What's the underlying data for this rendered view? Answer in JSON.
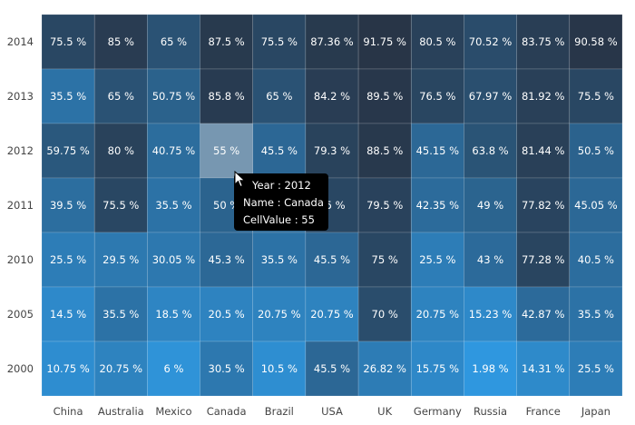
{
  "chart_data": {
    "type": "heatmap",
    "x_categories": [
      "China",
      "Australia",
      "Mexico",
      "Canada",
      "Brazil",
      "USA",
      "UK",
      "Germany",
      "Russia",
      "France",
      "Japan"
    ],
    "y_categories": [
      "2014",
      "2013",
      "2012",
      "2011",
      "2010",
      "2005",
      "2000"
    ],
    "values": [
      [
        75.5,
        85,
        65,
        87.5,
        75.5,
        87.36,
        91.75,
        80.5,
        70.52,
        83.75,
        90.58
      ],
      [
        35.5,
        65,
        50.75,
        85.8,
        65,
        84.2,
        89.5,
        76.5,
        67.97,
        81.92,
        75.5
      ],
      [
        59.75,
        80,
        40.75,
        55,
        45.5,
        79.3,
        88.5,
        45.15,
        63.8,
        81.44,
        50.5
      ],
      [
        39.5,
        75.5,
        35.5,
        50,
        45.5,
        75,
        79.5,
        42.35,
        49,
        77.82,
        45.05
      ],
      [
        25.5,
        29.5,
        30.05,
        45.3,
        35.5,
        45.5,
        75,
        25.5,
        43,
        77.28,
        40.5
      ],
      [
        14.5,
        35.5,
        18.5,
        20.5,
        20.75,
        20.75,
        70,
        20.75,
        15.23,
        42.87,
        35.5
      ],
      [
        10.75,
        20.75,
        6,
        30.5,
        10.5,
        45.5,
        26.82,
        15.75,
        1.98,
        14.31,
        25.5
      ]
    ],
    "cell_labels": [
      [
        "75.5 %",
        "85 %",
        "65 %",
        "87.5 %",
        "75.5 %",
        "87.36 %",
        "91.75 %",
        "80.5 %",
        "70.52 %",
        "83.75 %",
        "90.58 %"
      ],
      [
        "35.5 %",
        "65 %",
        "50.75 %",
        "85.8 %",
        "65 %",
        "84.2 %",
        "89.5 %",
        "76.5 %",
        "67.97 %",
        "81.92 %",
        "75.5 %"
      ],
      [
        "59.75 %",
        "80 %",
        "40.75 %",
        "55 %",
        "45.5 %",
        "79.3 %",
        "88.5 %",
        "45.15 %",
        "63.8 %",
        "81.44 %",
        "50.5 %"
      ],
      [
        "39.5 %",
        "75.5 %",
        "35.5 %",
        "50 %",
        "45.5 %",
        "75 %",
        "79.5 %",
        "42.35 %",
        "49 %",
        "77.82 %",
        "45.05 %"
      ],
      [
        "25.5 %",
        "29.5 %",
        "30.05 %",
        "45.3 %",
        "35.5 %",
        "45.5 %",
        "75 %",
        "25.5 %",
        "43 %",
        "77.28 %",
        "40.5 %"
      ],
      [
        "14.5 %",
        "35.5 %",
        "18.5 %",
        "20.5 %",
        "20.75 %",
        "20.75 %",
        "70 %",
        "20.75 %",
        "15.23 %",
        "42.87 %",
        "35.5 %"
      ],
      [
        "10.75 %",
        "20.75 %",
        "6 %",
        "30.5 %",
        "10.5 %",
        "45.5 %",
        "26.82 %",
        "15.75 %",
        "1.98 %",
        "14.31 %",
        "25.5 %"
      ]
    ],
    "color_range": {
      "low": "#2f97df",
      "high": "#283547"
    },
    "highlight_color": "#7797b1",
    "highlighted_cell": {
      "row": 2,
      "col": 3
    },
    "legend": "none",
    "grid": false
  },
  "tooltip": {
    "line1": "Year : 2012",
    "line2": "Name : Canada",
    "line3": "CellValue : 55"
  }
}
